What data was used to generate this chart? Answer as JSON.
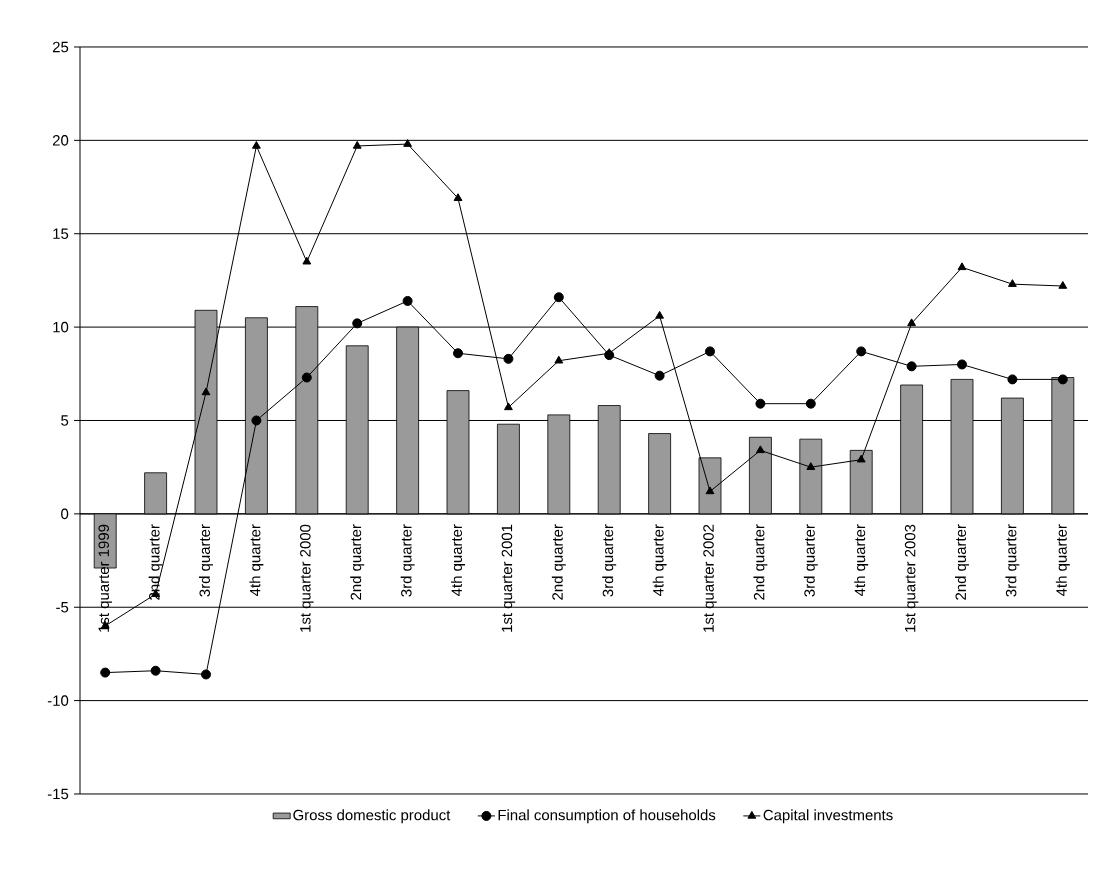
{
  "chart_data": {
    "type": "bar",
    "categories": [
      "1st quarter 1999",
      "2nd quarter",
      "3rd quarter",
      "4th quarter",
      "1st quarter 2000",
      "2nd quarter",
      "3rd quarter",
      "4th quarter",
      "1st quarter 2001",
      "2nd quarter",
      "3rd quarter",
      "4th quarter",
      "1st quarter 2002",
      "2nd quarter",
      "3rd quarter",
      "4th quarter",
      "1st quarter 2003",
      "2nd quarter",
      "3rd quarter",
      "4th quarter"
    ],
    "series": [
      {
        "name": "Gross domestic product",
        "color": "#9a9a9a",
        "values": [
          -2.9,
          2.2,
          10.9,
          10.5,
          11.1,
          9.0,
          10.0,
          6.6,
          4.8,
          5.3,
          5.8,
          4.3,
          3.0,
          4.1,
          4.0,
          3.4,
          6.9,
          7.2,
          6.2,
          7.3
        ]
      },
      {
        "name": "Final consumption of households",
        "type": "line",
        "marker": "circle",
        "color": "#000000",
        "values": [
          -8.5,
          -8.4,
          -8.6,
          5.0,
          7.3,
          10.2,
          11.4,
          8.6,
          8.3,
          11.6,
          8.5,
          7.4,
          8.7,
          5.9,
          5.9,
          8.7,
          7.9,
          8.0,
          7.2,
          7.2
        ]
      },
      {
        "name": "Capital investments",
        "type": "line",
        "marker": "triangle",
        "color": "#000000",
        "values": [
          -6.0,
          -4.3,
          6.5,
          19.7,
          13.5,
          19.7,
          19.8,
          16.9,
          5.7,
          8.2,
          8.6,
          10.6,
          1.2,
          3.4,
          2.5,
          2.9,
          10.2,
          13.2,
          12.3,
          12.2
        ]
      }
    ],
    "ylim": [
      -15,
      25
    ],
    "yticks": [
      -15,
      -10,
      -5,
      0,
      5,
      10,
      15,
      20,
      25
    ],
    "grid": "y",
    "legend": "bottom"
  }
}
